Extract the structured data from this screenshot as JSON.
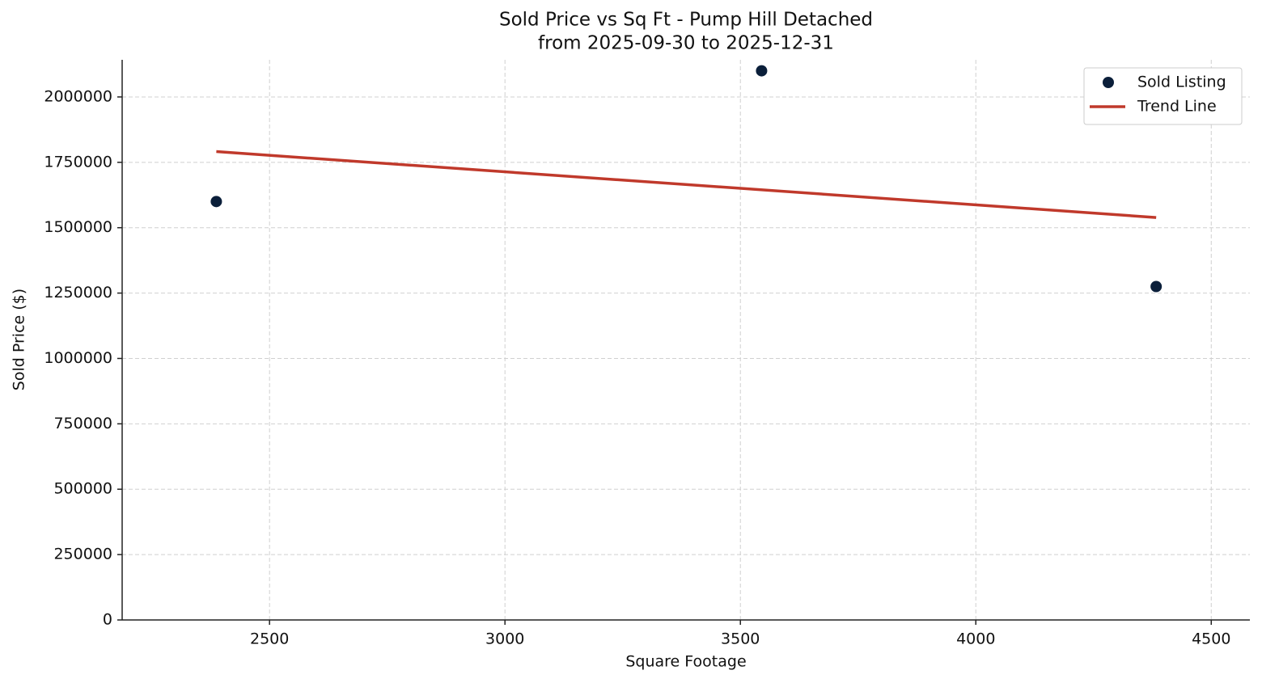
{
  "chart_data": {
    "type": "scatter",
    "title": "Sold Price vs Sq Ft - Pump Hill Detached",
    "subtitle": "from 2025-09-30 to 2025-12-31",
    "x_label": "Square Footage",
    "y_label": "Sold Price ($)",
    "series": [
      {
        "name": "Sold Listing",
        "type": "scatter",
        "color": "#0b1f3a",
        "x": [
          2387,
          3545,
          4383
        ],
        "values": [
          1600000,
          2100000,
          1275000
        ]
      },
      {
        "name": "Trend Line",
        "type": "line",
        "color": "#c0392b",
        "x": [
          2387,
          4383
        ],
        "values": [
          1791043,
          1539008
        ]
      }
    ],
    "xlim": [
      2187,
      4582
    ],
    "xticks": [
      2500,
      3000,
      3500,
      4000,
      4500
    ],
    "ylim": [
      0,
      2142000
    ],
    "yticks": [
      0,
      250000,
      500000,
      750000,
      1000000,
      1250000,
      1500000,
      1750000,
      2000000
    ],
    "grid": true,
    "legend": "upper right"
  }
}
